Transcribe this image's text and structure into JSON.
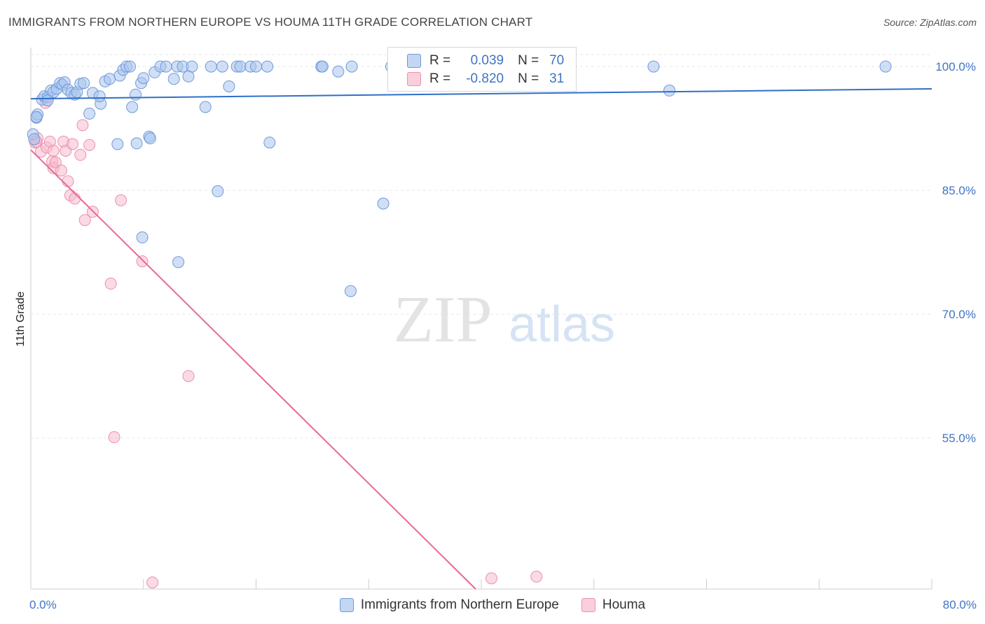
{
  "title": "IMMIGRANTS FROM NORTHERN EUROPE VS HOUMA 11TH GRADE CORRELATION CHART",
  "source": "Source: ZipAtlas.com",
  "watermark": {
    "zip": "ZIP",
    "atlas": "atlas"
  },
  "colors": {
    "blue_fill": "#a9c5ee",
    "blue_stroke": "#6f9ad8",
    "blue_line": "#2f6fc7",
    "pink_fill": "#f6bccd",
    "pink_stroke": "#ee8fab",
    "pink_line": "#e66a95",
    "grid": "#e6e6e6",
    "axis_text": "#3f74c4"
  },
  "legend": {
    "rows": [
      {
        "r_label": "R =",
        "r_value": "0.039",
        "n_label": "N =",
        "n_value": "70"
      },
      {
        "r_label": "R =",
        "r_value": "-0.820",
        "n_label": "N =",
        "n_value": "31"
      }
    ]
  },
  "bottom_legend": {
    "series1": "Immigrants from Northern Europe",
    "series2": "Houma"
  },
  "chart_data": {
    "type": "scatter",
    "title": "IMMIGRANTS FROM NORTHERN EUROPE VS HOUMA 11TH GRADE CORRELATION CHART",
    "xlabel": "",
    "ylabel": "11th Grade",
    "xlim": [
      0,
      80
    ],
    "ylim": [
      36.7,
      102.3
    ],
    "x_tick_labels": [
      "0.0%",
      "80.0%"
    ],
    "y_ticks": [
      {
        "value": 100,
        "label": "100.0%"
      },
      {
        "value": 85,
        "label": "85.0%"
      },
      {
        "value": 70,
        "label": "70.0%"
      },
      {
        "value": 55,
        "label": "55.0%"
      }
    ],
    "series": [
      {
        "name": "Immigrants from Northern Europe",
        "R": 0.039,
        "N": 70,
        "trendline": {
          "x": [
            0,
            80
          ],
          "y": [
            96.1,
            97.3
          ]
        },
        "points": [
          [
            0.2,
            91.8
          ],
          [
            0.3,
            91.2
          ],
          [
            0.5,
            93.8
          ],
          [
            0.6,
            94.2
          ],
          [
            1.0,
            96.0
          ],
          [
            1.2,
            96.4
          ],
          [
            1.5,
            96.3
          ],
          [
            1.8,
            97.1
          ],
          [
            2.0,
            96.9
          ],
          [
            2.3,
            97.3
          ],
          [
            2.6,
            98.0
          ],
          [
            2.8,
            97.8
          ],
          [
            3.0,
            98.1
          ],
          [
            3.3,
            97.2
          ],
          [
            3.6,
            96.8
          ],
          [
            3.9,
            96.6
          ],
          [
            4.1,
            96.9
          ],
          [
            4.4,
            97.9
          ],
          [
            4.7,
            98.0
          ],
          [
            5.2,
            94.3
          ],
          [
            5.5,
            96.8
          ],
          [
            6.2,
            95.5
          ],
          [
            6.1,
            96.4
          ],
          [
            6.6,
            98.2
          ],
          [
            7.0,
            98.5
          ],
          [
            7.7,
            90.6
          ],
          [
            7.9,
            98.9
          ],
          [
            8.2,
            99.6
          ],
          [
            8.5,
            100.0
          ],
          [
            8.8,
            100.0
          ],
          [
            9.0,
            95.1
          ],
          [
            9.3,
            96.6
          ],
          [
            9.4,
            90.7
          ],
          [
            9.8,
            98.0
          ],
          [
            10.0,
            98.6
          ],
          [
            10.5,
            91.5
          ],
          [
            10.6,
            91.3
          ],
          [
            11.0,
            99.3
          ],
          [
            11.5,
            100.0
          ],
          [
            12.0,
            100.0
          ],
          [
            12.7,
            98.5
          ],
          [
            13.0,
            100.0
          ],
          [
            13.5,
            100.0
          ],
          [
            14.0,
            98.8
          ],
          [
            14.3,
            100.0
          ],
          [
            15.5,
            95.1
          ],
          [
            16.0,
            100.0
          ],
          [
            16.6,
            84.9
          ],
          [
            17.0,
            100.0
          ],
          [
            17.6,
            97.6
          ],
          [
            18.3,
            100.0
          ],
          [
            18.6,
            100.0
          ],
          [
            19.5,
            100.0
          ],
          [
            20.0,
            100.0
          ],
          [
            21.0,
            100.0
          ],
          [
            21.2,
            90.8
          ],
          [
            25.8,
            100.0
          ],
          [
            25.9,
            100.0
          ],
          [
            27.3,
            99.4
          ],
          [
            28.5,
            100.0
          ],
          [
            28.4,
            72.8
          ],
          [
            31.3,
            83.4
          ],
          [
            32.0,
            100.0
          ],
          [
            55.3,
            100.0
          ],
          [
            56.7,
            97.1
          ],
          [
            75.9,
            100.0
          ],
          [
            9.9,
            79.3
          ],
          [
            13.1,
            76.3
          ],
          [
            1.5,
            95.9
          ],
          [
            0.5,
            93.9
          ]
        ]
      },
      {
        "name": "Houma",
        "R": -0.82,
        "N": 31,
        "trendline": {
          "x": [
            0,
            39.5
          ],
          "y": [
            89.9,
            36.7
          ]
        },
        "points": [
          [
            0.4,
            90.8
          ],
          [
            0.6,
            91.3
          ],
          [
            0.9,
            89.7
          ],
          [
            1.3,
            95.6
          ],
          [
            1.4,
            90.2
          ],
          [
            1.7,
            90.9
          ],
          [
            1.9,
            88.5
          ],
          [
            2.0,
            87.7
          ],
          [
            2.2,
            88.4
          ],
          [
            2.7,
            87.4
          ],
          [
            2.9,
            90.9
          ],
          [
            3.1,
            89.8
          ],
          [
            3.3,
            86.1
          ],
          [
            3.5,
            84.4
          ],
          [
            3.7,
            90.6
          ],
          [
            3.9,
            84.0
          ],
          [
            4.4,
            89.3
          ],
          [
            4.6,
            92.9
          ],
          [
            4.8,
            81.4
          ],
          [
            5.2,
            90.5
          ],
          [
            5.5,
            82.4
          ],
          [
            8.0,
            83.8
          ],
          [
            9.9,
            76.4
          ],
          [
            7.1,
            73.7
          ],
          [
            14.0,
            62.5
          ],
          [
            7.4,
            55.1
          ],
          [
            10.8,
            37.5
          ],
          [
            40.9,
            38.0
          ],
          [
            44.9,
            38.2
          ],
          [
            0.5,
            90.9
          ],
          [
            2.0,
            89.8
          ]
        ]
      }
    ]
  }
}
